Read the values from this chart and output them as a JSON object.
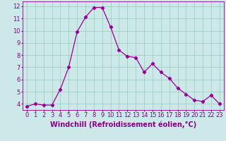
{
  "x": [
    0,
    1,
    2,
    3,
    4,
    5,
    6,
    7,
    8,
    9,
    10,
    11,
    12,
    13,
    14,
    15,
    16,
    17,
    18,
    19,
    20,
    21,
    22,
    23
  ],
  "y": [
    3.8,
    4.0,
    3.9,
    3.9,
    5.2,
    7.0,
    9.9,
    11.1,
    11.9,
    11.9,
    10.3,
    8.4,
    7.9,
    7.8,
    6.6,
    7.3,
    6.6,
    6.1,
    5.3,
    4.8,
    4.3,
    4.2,
    4.7,
    4.0
  ],
  "line_color": "#990099",
  "marker": "D",
  "marker_size": 2.2,
  "bg_color": "#cce8e8",
  "grid_color": "#99ccbb",
  "title": "Windchill (Refroidissement éolien,°C)",
  "ylabel_ticks": [
    4,
    5,
    6,
    7,
    8,
    9,
    10,
    11,
    12
  ],
  "xlabel_ticks": [
    0,
    1,
    2,
    3,
    4,
    5,
    6,
    7,
    8,
    9,
    10,
    11,
    12,
    13,
    14,
    15,
    16,
    17,
    18,
    19,
    20,
    21,
    22,
    23
  ],
  "ylim": [
    3.5,
    12.4
  ],
  "xlim": [
    -0.5,
    23.5
  ],
  "tick_label_fontsize": 6.0,
  "xlabel_fontsize": 7.0,
  "axis_label_color": "#880088",
  "spine_color": "#880088"
}
